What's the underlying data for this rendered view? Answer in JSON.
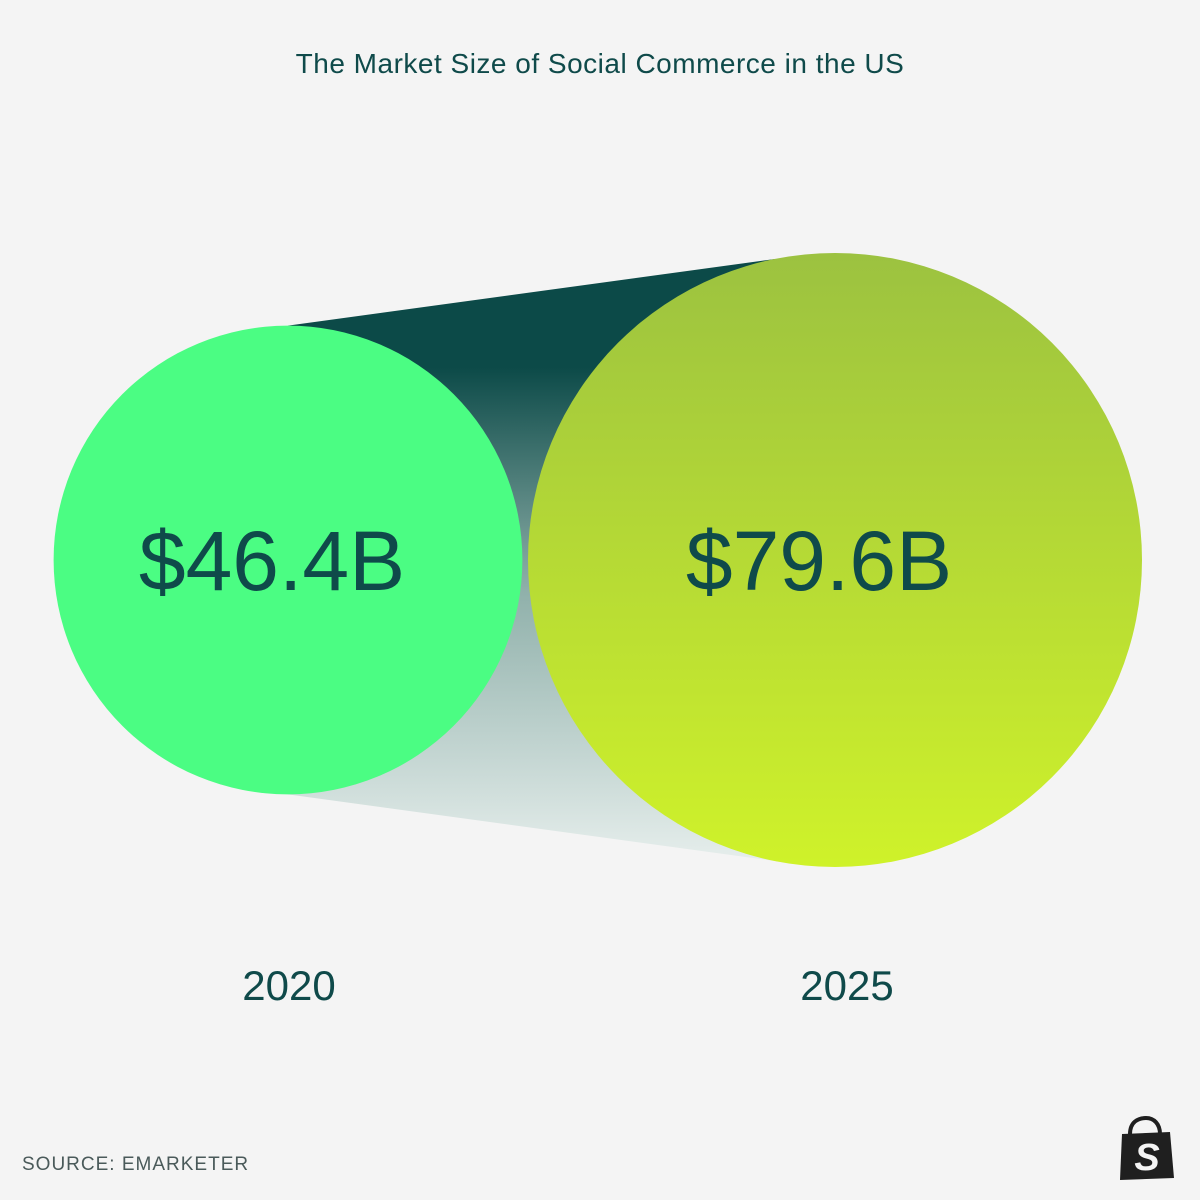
{
  "chart_data": {
    "type": "bubble",
    "title": "The Market Size of Social Commerce in the US",
    "categories": [
      "2020",
      "2025"
    ],
    "values": [
      46.4,
      79.6
    ],
    "value_labels": [
      "$46.4B",
      "$79.6B"
    ],
    "unit": "USD billions",
    "colors": [
      "#4bfd83",
      "#9cc240"
    ]
  },
  "source": "SOURCE: EMARKETER",
  "logo_icon": "shopify-bag-icon",
  "logo_letter": "S"
}
